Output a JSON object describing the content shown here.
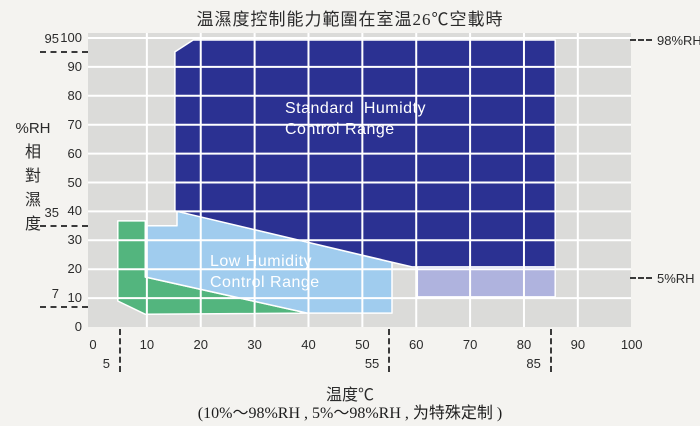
{
  "title": "温濕度控制能力範圍在室温26℃空載時",
  "chart_data": {
    "type": "area",
    "title": "温濕度控制能力範圍在室温26℃空載時",
    "xlabel": "温度℃",
    "ylabel_unit": "%RH",
    "ylabel_cjk": "相對濕度",
    "note": "(10%～98%RH , 5%～98%RH , 为特殊定制 )",
    "xlim": [
      0,
      100
    ],
    "ylim": [
      0,
      100
    ],
    "grid": true,
    "x_ticks": [
      0,
      10,
      20,
      30,
      40,
      50,
      60,
      70,
      80,
      90,
      100
    ],
    "y_ticks": [
      0,
      10,
      20,
      30,
      40,
      50,
      60,
      70,
      80,
      90,
      100
    ],
    "x_special_markers": [
      {
        "value": 5,
        "label": "5"
      },
      {
        "value": 55,
        "label": "55"
      },
      {
        "value": 85,
        "label": "85"
      }
    ],
    "y_special_markers": [
      {
        "value": 95,
        "label": "95"
      },
      {
        "value": 35,
        "label": "35"
      },
      {
        "value": 7,
        "label": "7"
      }
    ],
    "right_annotations": [
      {
        "label": "98%RH",
        "rh": 99.3
      },
      {
        "label": "5%RH",
        "rh": 16.9
      }
    ],
    "colors": {
      "page_bg": "#f4f3f0",
      "plot_bg": "#dbdbd9",
      "grid": "#ffffff",
      "standard_range": "#2b3192",
      "low_range": "#a0ccee",
      "green_range": "#53b57e",
      "purple_range": "#afb3de"
    },
    "regions": [
      {
        "name": "standard-humidity-control-range",
        "label_line1": "Standard  Humidty",
        "label_line2": "Control Range",
        "color_key": "standard_range",
        "points": [
          [
            15.2,
            95.2
          ],
          [
            18.6,
            99.3
          ],
          [
            85.8,
            99.3
          ],
          [
            85.8,
            20.8
          ],
          [
            59.2,
            20.8
          ],
          [
            15.2,
            40.2
          ]
        ]
      },
      {
        "name": "low-humidity-control-range",
        "label_line1": "Low Humidity",
        "label_line2": "Control Range",
        "color_key": "low_range",
        "points": [
          [
            9.7,
            35
          ],
          [
            15.6,
            35
          ],
          [
            15.6,
            40.1
          ],
          [
            55.5,
            22.4
          ],
          [
            55.5,
            4.8
          ],
          [
            39.8,
            4.8
          ],
          [
            9.7,
            17.3
          ]
        ]
      },
      {
        "name": "green-extended-range",
        "label_line1": "",
        "label_line2": "",
        "color_key": "green_range",
        "points": [
          [
            4.6,
            36.7
          ],
          [
            9.7,
            36.7
          ],
          [
            9.7,
            17.3
          ],
          [
            39.8,
            4.8
          ],
          [
            9.7,
            4.4
          ],
          [
            4.6,
            9.0
          ]
        ]
      },
      {
        "name": "purple-extended-range",
        "label_line1": "",
        "label_line2": "",
        "color_key": "purple_range",
        "points": [
          [
            60.2,
            20.8
          ],
          [
            85.8,
            20.8
          ],
          [
            85.8,
            10.4
          ],
          [
            60.2,
            10.4
          ]
        ]
      }
    ]
  }
}
